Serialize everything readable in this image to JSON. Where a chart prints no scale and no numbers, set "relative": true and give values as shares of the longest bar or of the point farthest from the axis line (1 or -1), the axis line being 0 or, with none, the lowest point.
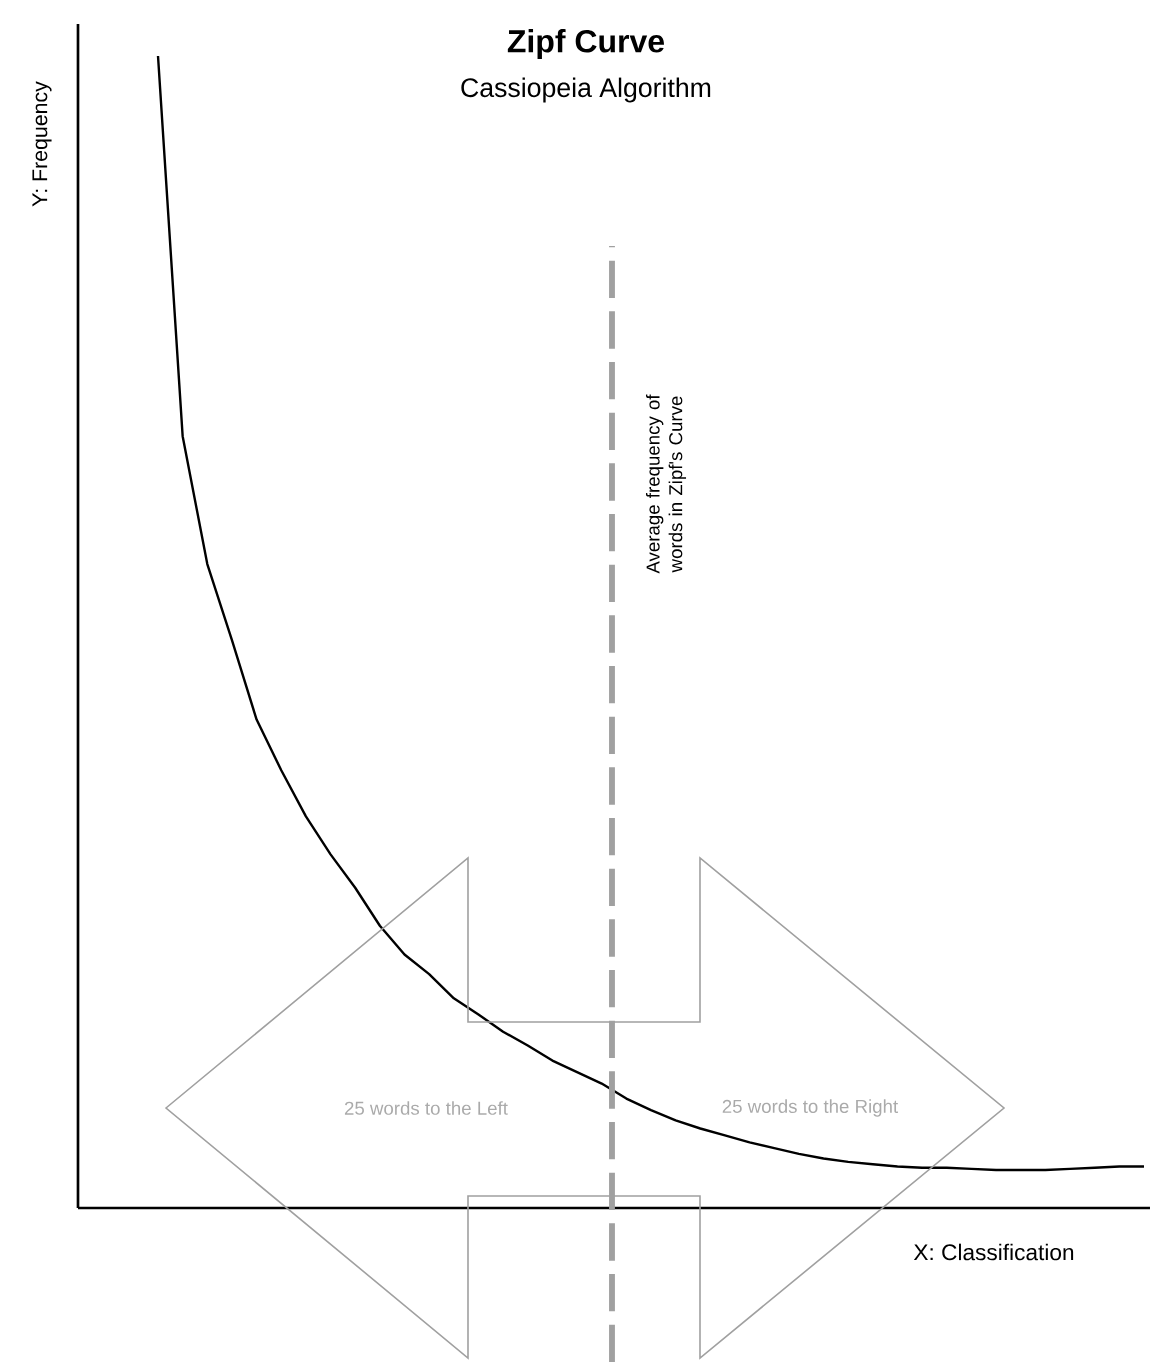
{
  "chart_data": {
    "type": "line",
    "title": "Zipf Curve",
    "subtitle": "Cassiopeia Algorithm",
    "xlabel": "X: Classification",
    "ylabel": "Y: Frequency",
    "relative": true,
    "categories": [
      null,
      null,
      null,
      null,
      null,
      null,
      null,
      null,
      null,
      null,
      null,
      null,
      null,
      null,
      null,
      null,
      null,
      null,
      null,
      null,
      null,
      null,
      null,
      null,
      null,
      null,
      null,
      null,
      null,
      null,
      null,
      null,
      null,
      null,
      null,
      null,
      null,
      null,
      null,
      null,
      null
    ],
    "series": [
      {
        "color": "#000000",
        "values": [
          1.0,
          0.67,
          0.559,
          0.493,
          0.424,
          0.38,
          0.34,
          0.307,
          0.278,
          0.245,
          0.22,
          0.203,
          0.182,
          0.168,
          0.153,
          0.141,
          0.128,
          0.118,
          0.108,
          0.095,
          0.085,
          0.076,
          0.069,
          0.063,
          0.057,
          0.052,
          0.047,
          0.043,
          0.04,
          0.038,
          0.036,
          0.035,
          0.035,
          0.034,
          0.033,
          0.033,
          0.033,
          0.034,
          0.035,
          0.036,
          0.036
        ]
      }
    ],
    "annotations": [
      "25 words to the Left",
      "25 words to the Right",
      "Average frequency of words in Zipf's Curve"
    ],
    "marker": "none",
    "line_style": "solid"
  }
}
